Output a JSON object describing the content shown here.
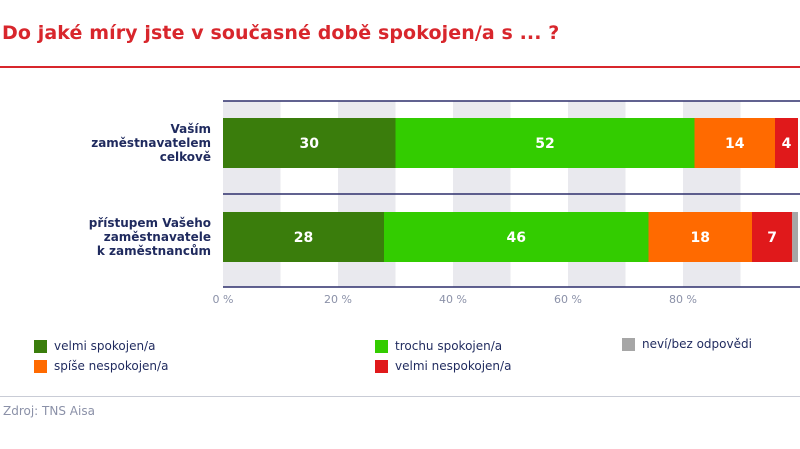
{
  "title": "Do jaké míry jste v současné době spokojen/a s ... ?",
  "source": "Zdroj: TNS Aisa",
  "chart_data": {
    "type": "bar",
    "orientation": "horizontal",
    "stacked": true,
    "categories": [
      [
        "Vaším",
        "zaměstnavatelem",
        "celkově"
      ],
      [
        "přístupem Vašeho",
        "zaměstnavatele",
        "k zaměstnancům"
      ]
    ],
    "series": [
      {
        "name": "velmi spokojen/a",
        "color": "#3a7d0c",
        "values": [
          30,
          28
        ]
      },
      {
        "name": "trochu spokojen/a",
        "color": "#33cc00",
        "values": [
          52,
          46
        ]
      },
      {
        "name": "spíše nespokojen/a",
        "color": "#ff6a00",
        "values": [
          14,
          18
        ]
      },
      {
        "name": "velmi nespokojen/a",
        "color": "#e0191b",
        "values": [
          4,
          7
        ]
      },
      {
        "name": "neví/bez odpovědi",
        "color": "#a6a6a6",
        "values": [
          0,
          1
        ]
      }
    ],
    "data_labels": [
      [
        "30",
        "52",
        "14",
        "4",
        ""
      ],
      [
        "28",
        "46",
        "18",
        "7",
        ""
      ]
    ],
    "x_ticks": [
      "0 %",
      "20 %",
      "40 %",
      "60 %",
      "80 %"
    ],
    "x_tick_values": [
      0,
      20,
      40,
      60,
      80
    ],
    "xlim": [
      0,
      100
    ],
    "grid": true,
    "legend_position": "bottom"
  }
}
